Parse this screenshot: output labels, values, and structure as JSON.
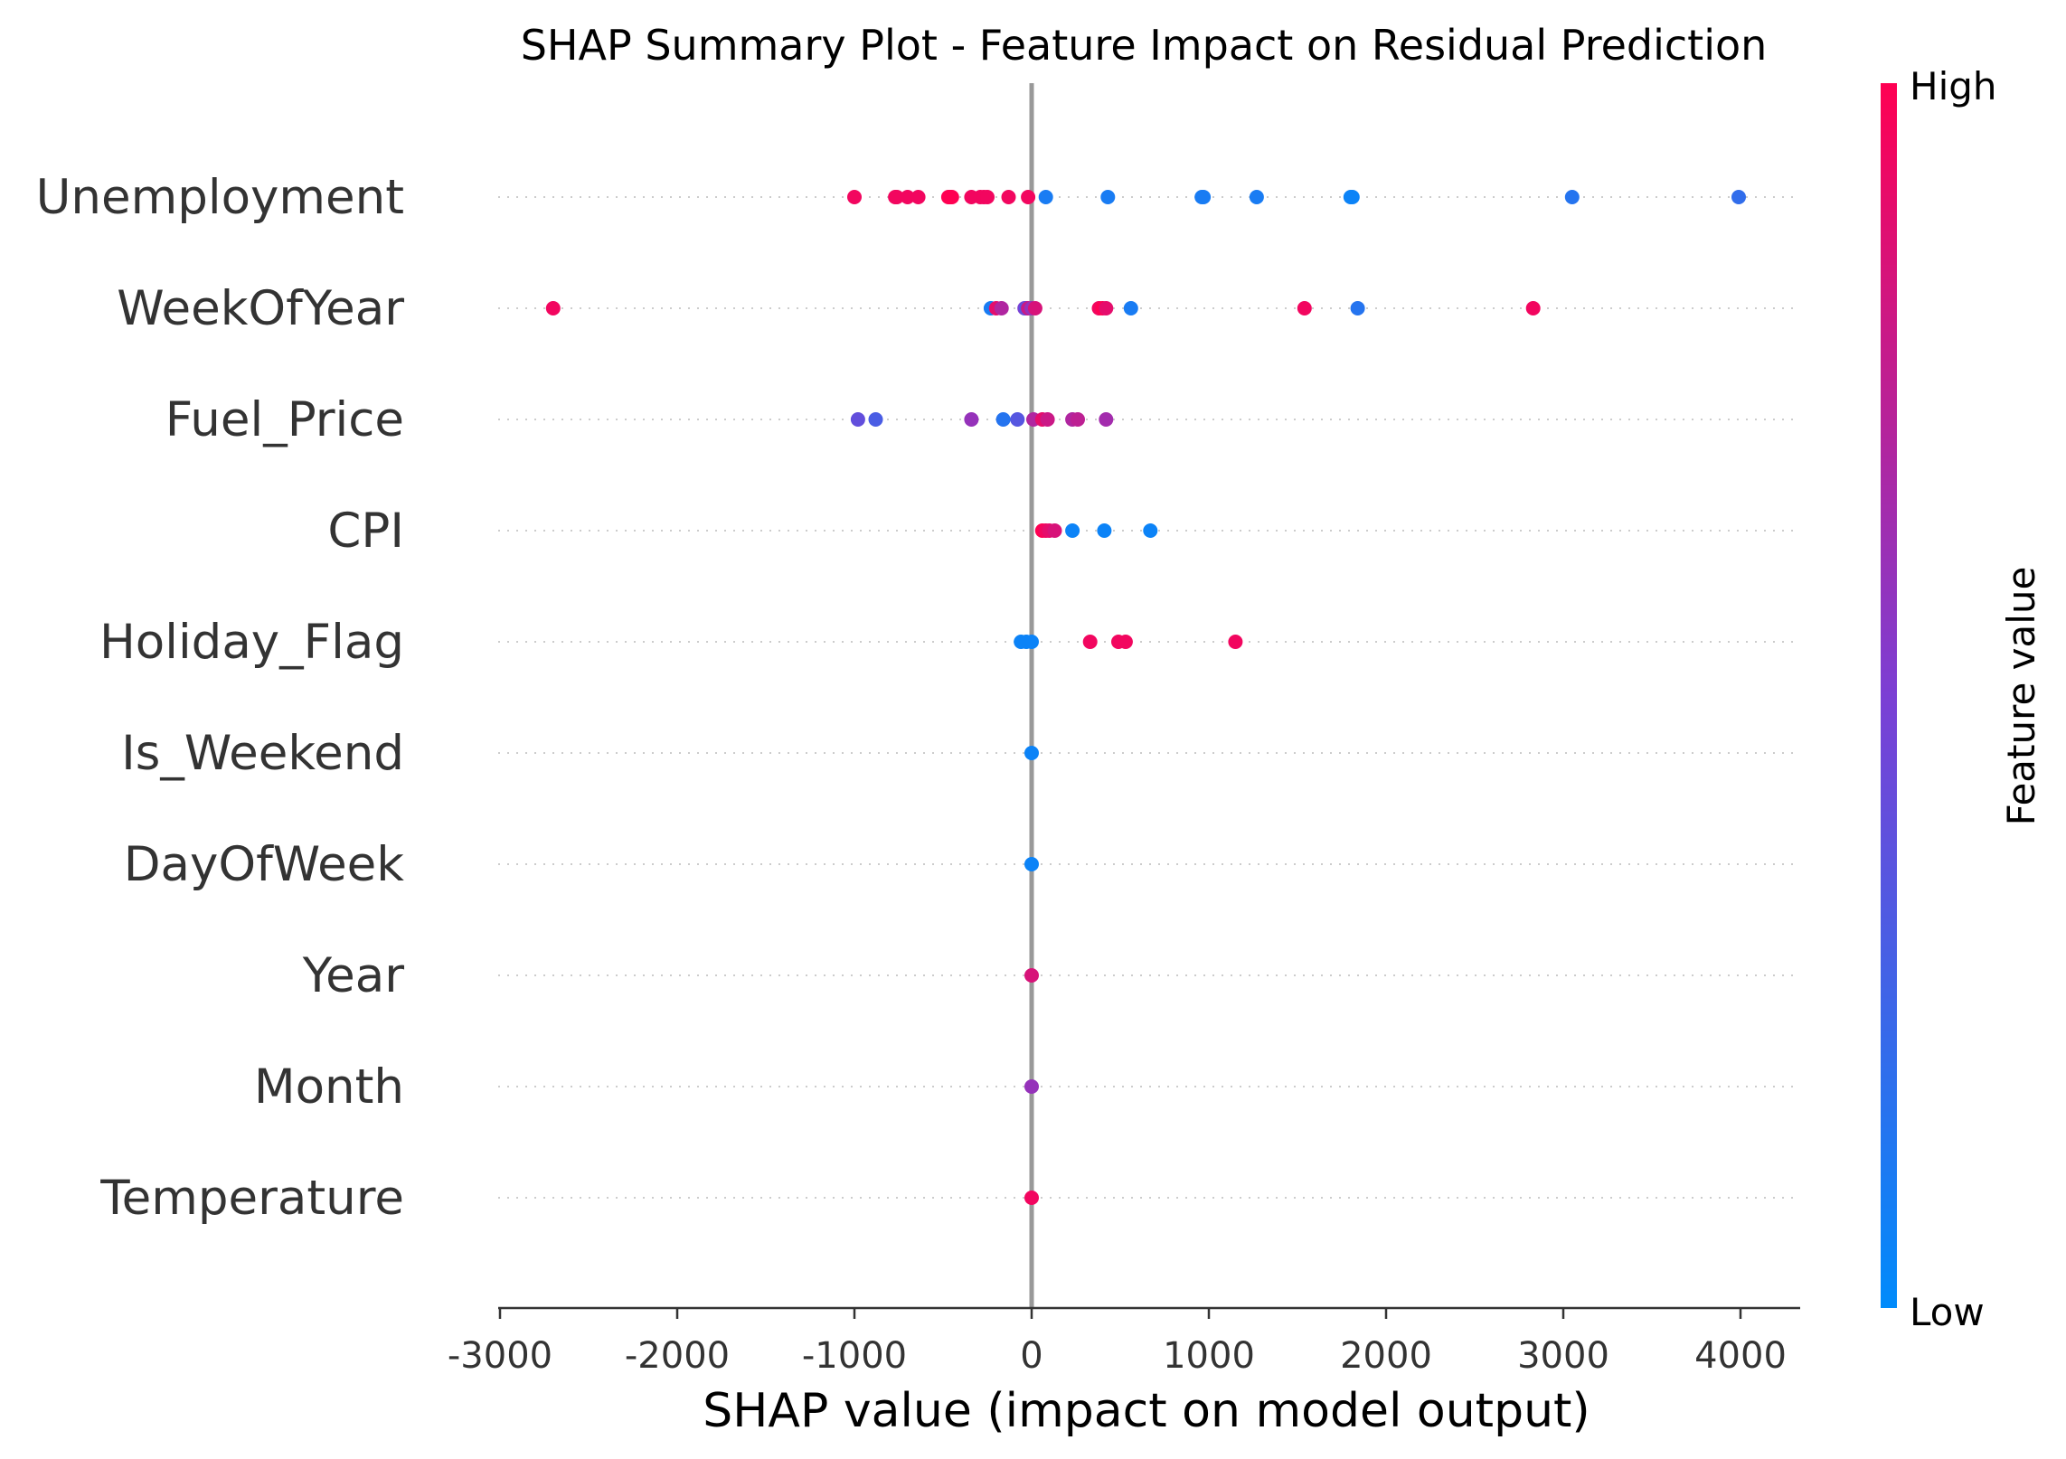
{
  "chart_data": {
    "type": "scatter",
    "subtype": "shap-beeswarm",
    "title": "SHAP Summary Plot - Feature Impact on Residual Prediction",
    "xlabel": "SHAP value (impact on model output)",
    "ylabel": "",
    "xlim": [
      -3030,
      4330
    ],
    "xticks": [
      -3000,
      -2000,
      -1000,
      0,
      1000,
      2000,
      3000,
      4000
    ],
    "xtick_labels": [
      "-3000",
      "-2000",
      "-1000",
      "0",
      "1000",
      "2000",
      "3000",
      "4000"
    ],
    "grid": false,
    "zero_line": true,
    "colorbar": {
      "label": "Feature value",
      "high_label": "High",
      "low_label": "Low",
      "high_color": "#ff0052",
      "low_color": "#008bfb"
    },
    "features": [
      "Unemployment",
      "WeekOfYear",
      "Fuel_Price",
      "CPI",
      "Holiday_Flag",
      "Is_Weekend",
      "DayOfWeek",
      "Year",
      "Month",
      "Temperature"
    ],
    "points": [
      {
        "feature": "Unemployment",
        "shap_values": [
          -1000,
          -770,
          -760,
          -700,
          -640,
          -470,
          -460,
          -450,
          -340,
          -290,
          -270,
          -250,
          -130,
          -20,
          80,
          430,
          960,
          970,
          1270,
          1800,
          1810,
          3050,
          3990
        ],
        "feature_values": [
          0.95,
          0.95,
          0.95,
          0.95,
          0.95,
          1.0,
          1.0,
          1.0,
          0.95,
          0.95,
          0.95,
          0.95,
          0.95,
          0.95,
          0.1,
          0.1,
          0.1,
          0.1,
          0.1,
          0.05,
          0.05,
          0.15,
          0.2
        ]
      },
      {
        "feature": "WeekOfYear",
        "shap_values": [
          -2700,
          -230,
          -200,
          -170,
          -40,
          -30,
          -20,
          0,
          20,
          380,
          400,
          420,
          560,
          1540,
          1840,
          2830
        ],
        "feature_values": [
          0.95,
          0.1,
          0.9,
          0.7,
          0.5,
          0.35,
          0.8,
          0.6,
          0.85,
          0.95,
          1.0,
          0.9,
          0.1,
          0.95,
          0.15,
          0.95
        ]
      },
      {
        "feature": "Fuel_Price",
        "shap_values": [
          -980,
          -880,
          -340,
          -160,
          -80,
          10,
          60,
          90,
          230,
          260,
          420
        ],
        "feature_values": [
          0.4,
          0.3,
          0.6,
          0.15,
          0.35,
          0.7,
          0.9,
          0.8,
          0.7,
          0.75,
          0.65
        ]
      },
      {
        "feature": "CPI",
        "shap_values": [
          60,
          80,
          100,
          130,
          230,
          410,
          670
        ],
        "feature_values": [
          1.0,
          0.95,
          0.9,
          0.85,
          0.05,
          0.05,
          0.05
        ]
      },
      {
        "feature": "Holiday_Flag",
        "shap_values": [
          -60,
          -30,
          0,
          330,
          490,
          530,
          1150
        ],
        "feature_values": [
          0.05,
          0.05,
          0.05,
          0.95,
          0.95,
          0.95,
          0.95
        ]
      },
      {
        "feature": "Is_Weekend",
        "shap_values": [
          0
        ],
        "feature_values": [
          0.05
        ]
      },
      {
        "feature": "DayOfWeek",
        "shap_values": [
          0
        ],
        "feature_values": [
          0.05
        ]
      },
      {
        "feature": "Year",
        "shap_values": [
          0
        ],
        "feature_values": [
          0.85
        ]
      },
      {
        "feature": "Month",
        "shap_values": [
          0
        ],
        "feature_values": [
          0.6
        ]
      },
      {
        "feature": "Temperature",
        "shap_values": [
          0
        ],
        "feature_values": [
          0.95
        ]
      }
    ]
  }
}
